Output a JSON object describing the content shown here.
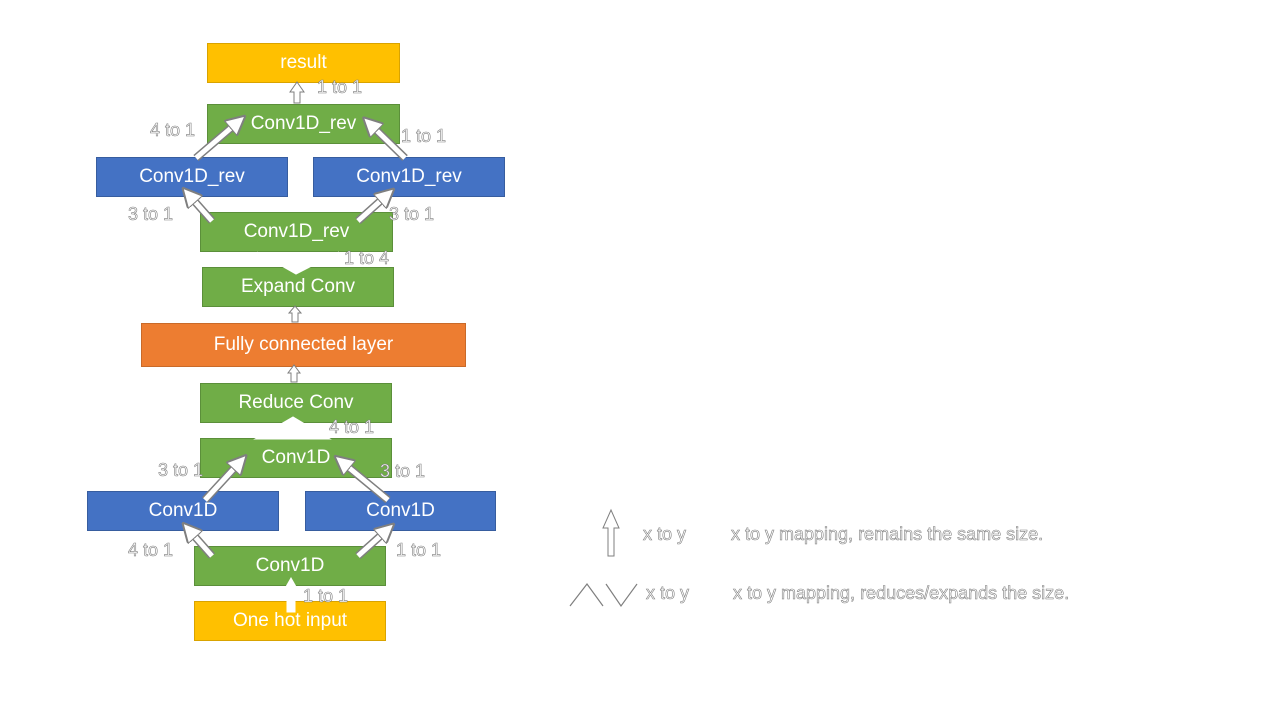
{
  "boxes": {
    "result": "result",
    "rev_top": "Conv1D_rev",
    "rev_left": "Conv1D_rev",
    "rev_right": "Conv1D_rev",
    "rev_bottom": "Conv1D_rev",
    "expand": "Expand Conv",
    "fc": "Fully connected layer",
    "reduce": "Reduce Conv",
    "conv_top": "Conv1D",
    "conv_left": "Conv1D",
    "conv_right": "Conv1D",
    "conv_bottom": "Conv1D",
    "input": "One hot input"
  },
  "labels": {
    "l_result": "1 to 1",
    "l_revtop_left": "4 to 1",
    "l_revtop_right": "1 to 1",
    "l_revbot_left": "3 to 1",
    "l_revbot_right": "3 to 1",
    "l_expand": "1 to 4",
    "l_reduce": "4 to 1",
    "l_convtop_left": "3 to 1",
    "l_convtop_right": "3 to 1",
    "l_convbot_left": "4 to 1",
    "l_convbot_right": "1 to 1",
    "l_input": "1 to 1"
  },
  "legend": {
    "same_symbol": "x to y",
    "same_desc": "x to y mapping, remains the same size.",
    "resize_symbol": "x to y",
    "resize_desc": "x to y mapping, reduces/expands the size."
  },
  "colors": {
    "green": "#70ad47",
    "blue": "#4472c4",
    "yellow": "#ffc000",
    "orange": "#ed7d31"
  }
}
